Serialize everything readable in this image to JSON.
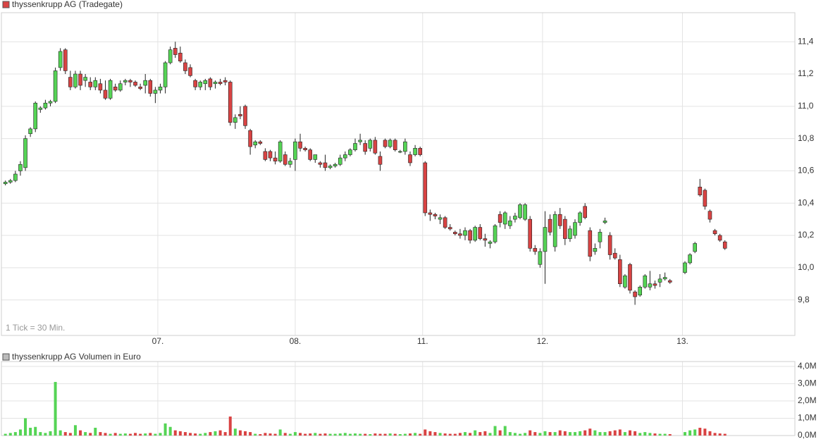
{
  "chart_data": [
    {
      "type": "candlestick",
      "title": "thyssenkrupp AG (Tradegate)",
      "note": "1 Tick = 30 Min.",
      "up_color": "#55d455",
      "down_color": "#d94343",
      "wick_color": "#222222",
      "grid": true,
      "xlim": [
        -0.8,
        158
      ],
      "xticks": [
        {
          "value": 30.5,
          "label": "07."
        },
        {
          "value": 58,
          "label": "08."
        },
        {
          "value": 83.5,
          "label": "11."
        },
        {
          "value": 107.5,
          "label": "12."
        },
        {
          "value": 135.5,
          "label": "13."
        }
      ],
      "ylim": [
        9.58,
        11.58
      ],
      "yticks": [
        {
          "value": 9.8,
          "label": "9,8"
        },
        {
          "value": 10.0,
          "label": "10,0"
        },
        {
          "value": 10.2,
          "label": "10,2"
        },
        {
          "value": 10.4,
          "label": "10,4"
        },
        {
          "value": 10.6,
          "label": "10,6"
        },
        {
          "value": 10.8,
          "label": "10,8"
        },
        {
          "value": 11.0,
          "label": "11,0"
        },
        {
          "value": 11.2,
          "label": "11,2"
        },
        {
          "value": 11.4,
          "label": "11,4"
        }
      ],
      "candles": [
        [
          10.52,
          10.54,
          10.51,
          10.53
        ],
        [
          10.53,
          10.55,
          10.52,
          10.54
        ],
        [
          10.54,
          10.6,
          10.53,
          10.58
        ],
        [
          10.6,
          10.66,
          10.57,
          10.64
        ],
        [
          10.62,
          10.82,
          10.6,
          10.8
        ],
        [
          10.83,
          10.87,
          10.81,
          10.86
        ],
        [
          10.86,
          11.03,
          10.84,
          11.02
        ],
        [
          10.98,
          11.0,
          10.96,
          10.99
        ],
        [
          10.99,
          11.04,
          10.98,
          11.02
        ],
        [
          11.02,
          11.04,
          11.0,
          11.03
        ],
        [
          11.03,
          11.24,
          11.02,
          11.22
        ],
        [
          11.24,
          11.36,
          11.22,
          11.34
        ],
        [
          11.35,
          11.36,
          11.2,
          11.22
        ],
        [
          11.18,
          11.22,
          11.1,
          11.12
        ],
        [
          11.12,
          11.22,
          11.11,
          11.2
        ],
        [
          11.2,
          11.22,
          11.1,
          11.13
        ],
        [
          11.16,
          11.2,
          11.12,
          11.18
        ],
        [
          11.15,
          11.18,
          11.1,
          11.12
        ],
        [
          11.12,
          11.18,
          11.1,
          11.16
        ],
        [
          11.14,
          11.17,
          11.08,
          11.1
        ],
        [
          11.1,
          11.16,
          11.04,
          11.05
        ],
        [
          11.05,
          11.17,
          11.04,
          11.16
        ],
        [
          11.12,
          11.14,
          11.09,
          11.1
        ],
        [
          11.1,
          11.16,
          11.09,
          11.14
        ],
        [
          11.15,
          11.17,
          11.13,
          11.16
        ],
        [
          11.16,
          11.17,
          11.12,
          11.15
        ],
        [
          11.15,
          11.16,
          11.12,
          11.13
        ],
        [
          11.12,
          11.14,
          11.1,
          11.11
        ],
        [
          11.13,
          11.2,
          11.08,
          11.16
        ],
        [
          11.16,
          11.17,
          11.06,
          11.08
        ],
        [
          11.08,
          11.12,
          11.02,
          11.1
        ],
        [
          11.1,
          11.14,
          11.08,
          11.12
        ],
        [
          11.12,
          11.28,
          11.08,
          11.27
        ],
        [
          11.27,
          11.37,
          11.26,
          11.35
        ],
        [
          11.36,
          11.4,
          11.3,
          11.32
        ],
        [
          11.33,
          11.37,
          11.27,
          11.28
        ],
        [
          11.27,
          11.29,
          11.2,
          11.22
        ],
        [
          11.24,
          11.26,
          11.18,
          11.19
        ],
        [
          11.16,
          11.17,
          11.1,
          11.12
        ],
        [
          11.12,
          11.16,
          11.1,
          11.15
        ],
        [
          11.14,
          11.17,
          11.1,
          11.16
        ],
        [
          11.17,
          11.18,
          11.1,
          11.12
        ],
        [
          11.14,
          11.16,
          11.11,
          11.15
        ],
        [
          11.15,
          11.17,
          11.13,
          11.14
        ],
        [
          11.16,
          11.18,
          11.13,
          11.15
        ],
        [
          11.15,
          11.16,
          10.88,
          10.9
        ],
        [
          10.9,
          10.95,
          10.86,
          10.93
        ],
        [
          10.95,
          11.0,
          10.92,
          10.94
        ],
        [
          11.0,
          11.01,
          10.86,
          10.88
        ],
        [
          10.85,
          10.86,
          10.7,
          10.75
        ],
        [
          10.76,
          10.79,
          10.74,
          10.78
        ],
        [
          10.78,
          10.79,
          10.76,
          10.77
        ],
        [
          10.72,
          10.74,
          10.66,
          10.67
        ],
        [
          10.72,
          10.73,
          10.66,
          10.68
        ],
        [
          10.68,
          10.72,
          10.64,
          10.66
        ],
        [
          10.66,
          10.79,
          10.65,
          10.78
        ],
        [
          10.7,
          10.72,
          10.63,
          10.64
        ],
        [
          10.64,
          10.68,
          10.62,
          10.66
        ],
        [
          10.67,
          10.8,
          10.6,
          10.78
        ],
        [
          10.78,
          10.83,
          10.72,
          10.74
        ],
        [
          10.74,
          10.75,
          10.72,
          10.73
        ],
        [
          10.73,
          10.74,
          10.66,
          10.67
        ],
        [
          10.67,
          10.7,
          10.65,
          10.7
        ],
        [
          10.65,
          10.66,
          10.62,
          10.64
        ],
        [
          10.65,
          10.7,
          10.6,
          10.62
        ],
        [
          10.62,
          10.64,
          10.61,
          10.63
        ],
        [
          10.63,
          10.65,
          10.62,
          10.64
        ],
        [
          10.64,
          10.7,
          10.63,
          10.68
        ],
        [
          10.68,
          10.72,
          10.66,
          10.7
        ],
        [
          10.7,
          10.74,
          10.69,
          10.73
        ],
        [
          10.73,
          10.8,
          10.72,
          10.77
        ],
        [
          10.78,
          10.83,
          10.76,
          10.79
        ],
        [
          10.77,
          10.79,
          10.7,
          10.72
        ],
        [
          10.74,
          10.8,
          10.72,
          10.79
        ],
        [
          10.79,
          10.81,
          10.7,
          10.71
        ],
        [
          10.69,
          10.72,
          10.6,
          10.64
        ],
        [
          10.79,
          10.8,
          10.74,
          10.75
        ],
        [
          10.75,
          10.8,
          10.74,
          10.79
        ],
        [
          10.79,
          10.8,
          10.72,
          10.73
        ],
        [
          10.72,
          10.73,
          10.71,
          10.72
        ],
        [
          10.72,
          10.8,
          10.7,
          10.78
        ],
        [
          10.7,
          10.72,
          10.63,
          10.65
        ],
        [
          10.7,
          10.76,
          10.69,
          10.74
        ],
        [
          10.74,
          10.75,
          10.69,
          10.7
        ],
        [
          10.65,
          10.66,
          10.32,
          10.34
        ],
        [
          10.34,
          10.36,
          10.29,
          10.33
        ],
        [
          10.33,
          10.34,
          10.3,
          10.32
        ],
        [
          10.3,
          10.33,
          10.27,
          10.31
        ],
        [
          10.31,
          10.32,
          10.24,
          10.25
        ],
        [
          10.25,
          10.27,
          10.23,
          10.24
        ],
        [
          10.22,
          10.23,
          10.2,
          10.21
        ],
        [
          10.21,
          10.24,
          10.18,
          10.2
        ],
        [
          10.2,
          10.25,
          10.17,
          10.23
        ],
        [
          10.23,
          10.24,
          10.15,
          10.17
        ],
        [
          10.17,
          10.26,
          10.16,
          10.25
        ],
        [
          10.25,
          10.27,
          10.17,
          10.18
        ],
        [
          10.18,
          10.21,
          10.13,
          10.17
        ],
        [
          10.15,
          10.17,
          10.12,
          10.16
        ],
        [
          10.16,
          10.27,
          10.15,
          10.26
        ],
        [
          10.33,
          10.35,
          10.25,
          10.28
        ],
        [
          10.27,
          10.35,
          10.24,
          10.34
        ],
        [
          10.26,
          10.32,
          10.24,
          10.29
        ],
        [
          10.3,
          10.34,
          10.28,
          10.32
        ],
        [
          10.31,
          10.4,
          10.3,
          10.39
        ],
        [
          10.3,
          10.4,
          10.29,
          10.39
        ],
        [
          10.3,
          10.32,
          10.1,
          10.12
        ],
        [
          10.12,
          10.14,
          10.08,
          10.1
        ],
        [
          10.02,
          10.12,
          10.0,
          10.1
        ],
        [
          10.1,
          10.35,
          9.9,
          10.25
        ],
        [
          10.3,
          10.33,
          10.2,
          10.22
        ],
        [
          10.13,
          10.35,
          10.1,
          10.33
        ],
        [
          10.33,
          10.37,
          10.24,
          10.26
        ],
        [
          10.3,
          10.32,
          10.14,
          10.18
        ],
        [
          10.18,
          10.26,
          10.16,
          10.24
        ],
        [
          10.2,
          10.3,
          10.18,
          10.28
        ],
        [
          10.28,
          10.35,
          10.26,
          10.34
        ],
        [
          10.38,
          10.4,
          10.3,
          10.31
        ],
        [
          10.23,
          10.25,
          10.04,
          10.07
        ],
        [
          10.1,
          10.15,
          10.08,
          10.12
        ],
        [
          10.16,
          10.24,
          10.12,
          10.22
        ],
        [
          10.28,
          10.31,
          10.27,
          10.29
        ],
        [
          10.2,
          10.22,
          10.05,
          10.08
        ],
        [
          10.09,
          10.12,
          10.05,
          10.06
        ],
        [
          10.05,
          10.08,
          9.88,
          9.9
        ],
        [
          9.88,
          9.96,
          9.87,
          9.95
        ],
        [
          10.02,
          10.03,
          9.84,
          9.86
        ],
        [
          9.85,
          9.86,
          9.77,
          9.82
        ],
        [
          9.83,
          9.89,
          9.82,
          9.88
        ],
        [
          9.88,
          9.96,
          9.87,
          9.95
        ],
        [
          9.88,
          9.98,
          9.86,
          9.9
        ],
        [
          9.9,
          9.92,
          9.87,
          9.89
        ],
        [
          9.91,
          9.96,
          9.88,
          9.93
        ],
        [
          9.93,
          9.97,
          9.92,
          9.94
        ],
        [
          9.92,
          9.93,
          9.9,
          9.91
        ],
        null,
        null,
        [
          9.97,
          10.04,
          9.96,
          10.03
        ],
        [
          10.03,
          10.09,
          10.02,
          10.08
        ],
        [
          10.1,
          10.16,
          10.09,
          10.15
        ],
        [
          10.5,
          10.55,
          10.44,
          10.45
        ],
        [
          10.48,
          10.49,
          10.36,
          10.38
        ],
        [
          10.35,
          10.36,
          10.28,
          10.3
        ],
        [
          10.23,
          10.24,
          10.2,
          10.21
        ],
        [
          10.2,
          10.21,
          10.16,
          10.17
        ],
        [
          10.16,
          10.17,
          10.11,
          10.12
        ]
      ]
    },
    {
      "type": "bar",
      "title": "thyssenkrupp AG Volumen in Euro",
      "grid": true,
      "xlim": [
        -0.8,
        158
      ],
      "ylim": [
        0,
        4.28
      ],
      "yticks": [
        {
          "value": 0,
          "label": "0,0M"
        },
        {
          "value": 1,
          "label": "1,0M"
        },
        {
          "value": 2,
          "label": "2,0M"
        },
        {
          "value": 3,
          "label": "3,0M"
        },
        {
          "value": 4,
          "label": "4,0M"
        }
      ],
      "values": [
        0.1,
        0.15,
        0.2,
        0.35,
        1.0,
        0.45,
        0.5,
        0.2,
        0.15,
        0.25,
        3.1,
        0.3,
        0.2,
        0.15,
        0.6,
        0.3,
        0.2,
        0.15,
        0.45,
        0.2,
        0.15,
        0.1,
        0.15,
        0.1,
        0.12,
        0.1,
        0.15,
        0.1,
        0.12,
        0.15,
        0.1,
        0.15,
        0.7,
        0.5,
        0.3,
        0.25,
        0.2,
        0.15,
        0.12,
        0.1,
        0.15,
        0.2,
        0.25,
        0.3,
        0.2,
        1.1,
        0.4,
        0.3,
        0.25,
        0.2,
        0.1,
        0.08,
        0.15,
        0.12,
        0.1,
        0.35,
        0.15,
        0.1,
        0.2,
        0.15,
        0.1,
        0.12,
        0.15,
        0.1,
        0.12,
        0.1,
        0.1,
        0.12,
        0.15,
        0.1,
        0.12,
        0.1,
        0.1,
        0.08,
        0.12,
        0.1,
        0.1,
        0.12,
        0.1,
        0.08,
        0.1,
        0.12,
        0.15,
        0.1,
        0.35,
        0.25,
        0.2,
        0.15,
        0.12,
        0.1,
        0.1,
        0.15,
        0.2,
        0.15,
        0.3,
        0.2,
        0.25,
        0.15,
        0.55,
        0.3,
        0.55,
        0.2,
        0.15,
        0.1,
        0.15,
        0.3,
        0.2,
        0.15,
        0.25,
        0.2,
        0.2,
        0.3,
        0.25,
        0.2,
        0.2,
        0.25,
        0.3,
        0.4,
        0.3,
        0.2,
        0.2,
        0.25,
        0.3,
        0.35,
        0.2,
        0.3,
        0.25,
        0.15,
        0.2,
        0.15,
        0.12,
        0.1,
        0.1,
        0.08,
        null,
        null,
        0.2,
        0.3,
        0.35,
        0.45,
        0.4,
        0.25,
        0.15,
        0.12,
        0.1
      ]
    }
  ]
}
